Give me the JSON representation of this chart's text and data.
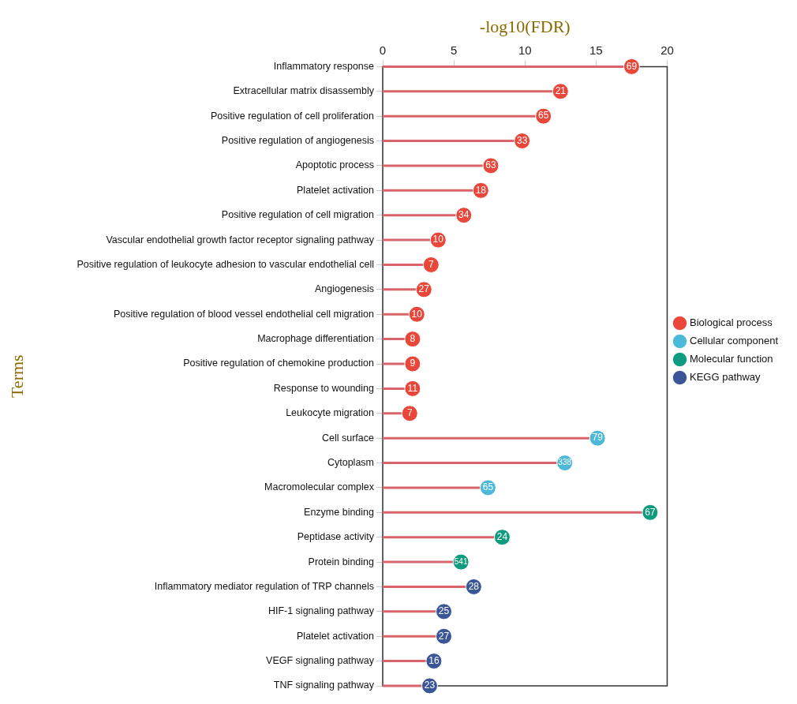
{
  "chart_data": {
    "type": "lollipop",
    "orientation": "horizontal",
    "xlabel": "-log10(FDR)",
    "ylabel": "Terms",
    "categories": [
      "Inflammatory response",
      "Extracellular matrix disassembly",
      "Positive regulation of cell proliferation",
      "Positive regulation of angiogenesis",
      "Apoptotic process",
      "Platelet activation",
      "Positive regulation of cell migration",
      "Vascular endothelial growth factor receptor signaling pathway",
      "Positive regulation of leukocyte adhesion to vascular endothelial cell",
      "Angiogenesis",
      "Positive regulation of blood vessel endothelial cell migration",
      "Macrophage differentiation",
      "Positive regulation of chemokine production",
      "Response to wounding",
      "Leukocyte migration",
      "Cell surface",
      "Cytoplasm",
      "Macromolecular complex",
      "Enzyme binding",
      "Peptidase activity",
      "Protein binding",
      "Inflammatory mediator regulation of TRP channels",
      "HIF-1 signaling pathway",
      "Platelet activation",
      "VEGF signaling pathway",
      "TNF signaling pathway"
    ],
    "series": [
      {
        "name": "Biological process",
        "color": "#e8473a",
        "values": [
          17.5,
          12.5,
          11.3,
          9.8,
          7.6,
          6.9,
          5.7,
          3.9,
          3.4,
          2.9,
          2.4,
          2.1,
          2.1,
          2.1,
          1.9,
          null,
          null,
          null,
          null,
          null,
          null,
          null,
          null,
          null,
          null,
          null
        ]
      },
      {
        "name": "Cellular component",
        "color": "#4cb9d8",
        "values": [
          null,
          null,
          null,
          null,
          null,
          null,
          null,
          null,
          null,
          null,
          null,
          null,
          null,
          null,
          null,
          15.1,
          12.8,
          7.4,
          null,
          null,
          null,
          null,
          null,
          null,
          null,
          null
        ]
      },
      {
        "name": "Molecular function",
        "color": "#0f9b7d",
        "values": [
          null,
          null,
          null,
          null,
          null,
          null,
          null,
          null,
          null,
          null,
          null,
          null,
          null,
          null,
          null,
          null,
          null,
          null,
          18.8,
          8.4,
          5.5,
          null,
          null,
          null,
          null,
          null
        ]
      },
      {
        "name": "KEGG pathway",
        "color": "#3b5696",
        "values": [
          null,
          null,
          null,
          null,
          null,
          null,
          null,
          null,
          null,
          null,
          null,
          null,
          null,
          null,
          null,
          null,
          null,
          null,
          null,
          null,
          null,
          6.4,
          4.3,
          4.3,
          3.6,
          3.3
        ]
      }
    ],
    "annotations": [
      {
        "text": "69",
        "x": 17.5,
        "y": "Inflammatory response"
      },
      {
        "text": "21",
        "x": 12.5,
        "y": "Extracellular matrix disassembly"
      },
      {
        "text": "65",
        "x": 11.3,
        "y": "Positive regulation of cell proliferation"
      },
      {
        "text": "33",
        "x": 9.8,
        "y": "Positive regulation of angiogenesis"
      },
      {
        "text": "63",
        "x": 7.6,
        "y": "Apoptotic process"
      },
      {
        "text": "18",
        "x": 6.9,
        "y": "Platelet activation"
      },
      {
        "text": "34",
        "x": 5.7,
        "y": "Positive regulation of cell migration"
      },
      {
        "text": "10",
        "x": 3.9,
        "y": "Vascular endothelial growth factor receptor signaling pathway"
      },
      {
        "text": "7",
        "x": 3.4,
        "y": "Positive regulation of leukocyte adhesion to vascular endothelial cell"
      },
      {
        "text": "27",
        "x": 2.9,
        "y": "Angiogenesis"
      },
      {
        "text": "10",
        "x": 2.4,
        "y": "Positive regulation of blood vessel endothelial cell migration"
      },
      {
        "text": "8",
        "x": 2.1,
        "y": "Macrophage differentiation"
      },
      {
        "text": "9",
        "x": 2.1,
        "y": "Positive regulation of chemokine production"
      },
      {
        "text": "11",
        "x": 2.1,
        "y": "Response to wounding"
      },
      {
        "text": "7",
        "x": 1.9,
        "y": "Leukocyte migration"
      },
      {
        "text": "79",
        "x": 15.1,
        "y": "Cell surface"
      },
      {
        "text": "338",
        "x": 12.8,
        "y": "Cytoplasm"
      },
      {
        "text": "65",
        "x": 7.4,
        "y": "Macromolecular complex"
      },
      {
        "text": "67",
        "x": 18.8,
        "y": "Enzyme binding"
      },
      {
        "text": "24",
        "x": 8.4,
        "y": "Peptidase activity"
      },
      {
        "text": "541",
        "x": 5.5,
        "y": "Protein binding"
      },
      {
        "text": "28",
        "x": 6.4,
        "y": "Inflammatory mediator regulation of TRP channels"
      },
      {
        "text": "25",
        "x": 4.3,
        "y": "HIF-1 signaling pathway"
      },
      "27",
      {
        "text": "16",
        "x": 3.6,
        "y": "VEGF signaling pathway"
      },
      {
        "text": "23",
        "x": 3.3,
        "y": "TNF signaling pathway"
      }
    ],
    "xlim": [
      0,
      20
    ],
    "xticks": [
      0,
      5,
      10,
      15,
      20
    ],
    "legend": "right",
    "marker": "circle"
  }
}
